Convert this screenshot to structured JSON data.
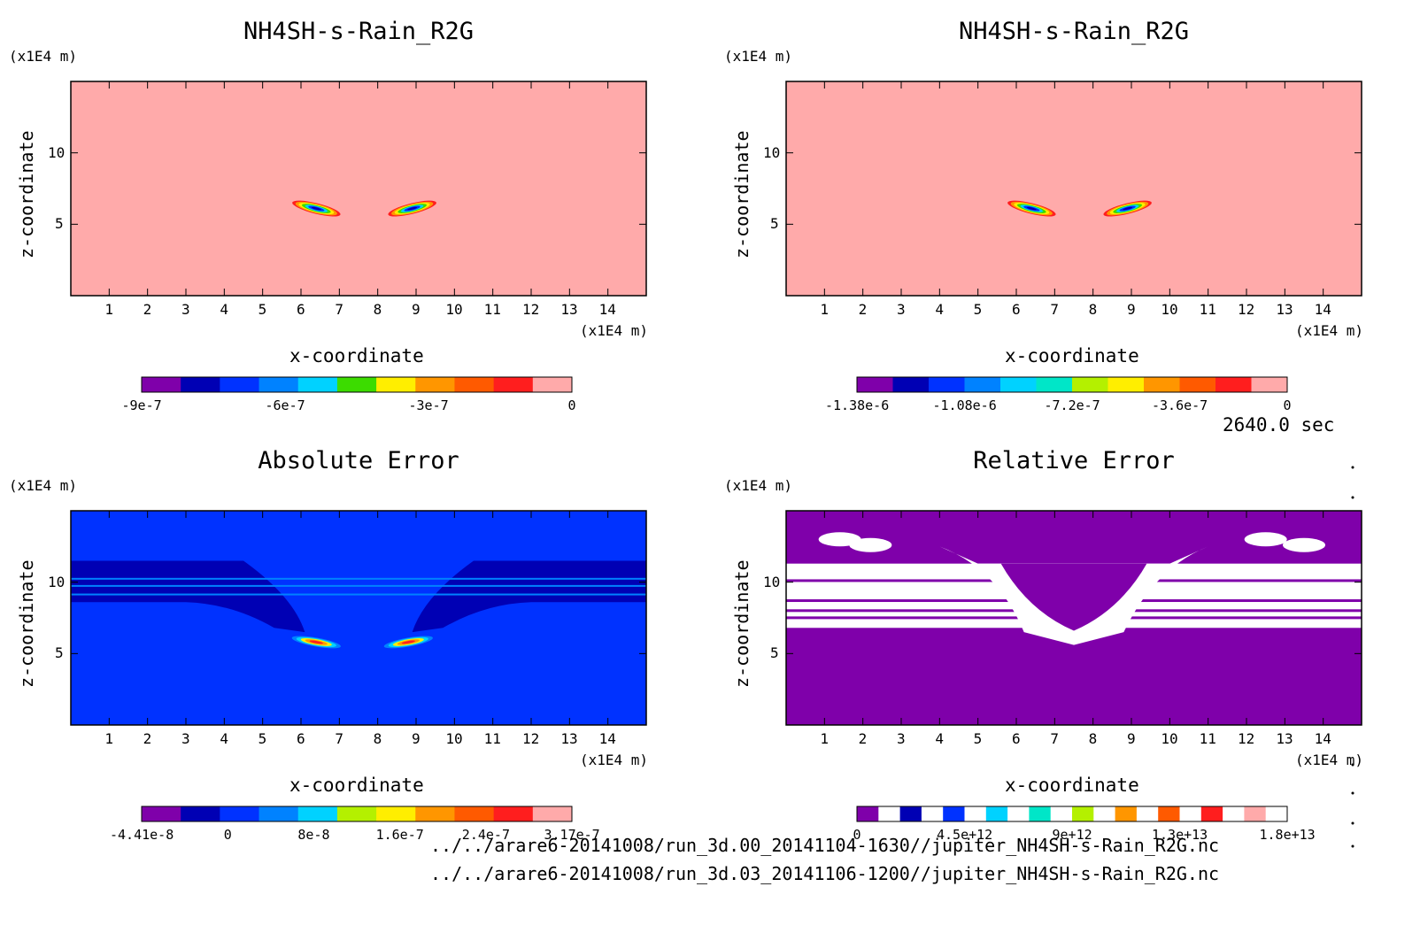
{
  "time_label": "2640.0 sec",
  "footer": {
    "path1": "../../arare6-20141008/run_3d.00_20141104-1630//jupiter_NH4SH-s-Rain_R2G.nc",
    "path2": "../../arare6-20141008/run_3d.03_20141106-1200//jupiter_NH4SH-s-Rain_R2G.nc"
  },
  "colors": {
    "purple": "#7f00aa",
    "darkblue": "#0000b4",
    "blue": "#0032ff",
    "midblue": "#0082ff",
    "cyan": "#00d2ff",
    "teal": "#00e6c8",
    "green": "#3cdc00",
    "lime": "#b4f000",
    "yellow": "#ffee00",
    "orange": "#ff9600",
    "darkorange": "#ff5a00",
    "red": "#ff1e1e",
    "pink": "#ffaaaa",
    "white": "#ffffff"
  },
  "chart_data": [
    {
      "type": "heatmap",
      "title": "NH4SH-s-Rain_R2G",
      "xlabel": "x-coordinate",
      "ylabel": "z-coordinate",
      "x_unit": "(x1E4 m)",
      "z_unit": "(x1E4 m)",
      "xlim": [
        0,
        15
      ],
      "ylim": [
        0,
        15
      ],
      "x_ticks": [
        "1",
        "2",
        "3",
        "4",
        "5",
        "6",
        "7",
        "8",
        "9",
        "10",
        "11",
        "12",
        "13",
        "14"
      ],
      "y_ticks": [
        "5",
        "10"
      ],
      "background": "pink",
      "colorbar": {
        "levels": [
          "purple",
          "darkblue",
          "blue",
          "midblue",
          "cyan",
          "green",
          "yellow",
          "orange",
          "darkorange",
          "red",
          "pink"
        ],
        "labels": [
          "-9e-7",
          "-6e-7",
          "-3e-7",
          "0"
        ]
      }
    },
    {
      "type": "heatmap",
      "title": "NH4SH-s-Rain_R2G",
      "xlabel": "x-coordinate",
      "ylabel": "z-coordinate",
      "x_unit": "(x1E4 m)",
      "z_unit": "(x1E4 m)",
      "xlim": [
        0,
        15
      ],
      "ylim": [
        0,
        15
      ],
      "x_ticks": [
        "1",
        "2",
        "3",
        "4",
        "5",
        "6",
        "7",
        "8",
        "9",
        "10",
        "11",
        "12",
        "13",
        "14"
      ],
      "y_ticks": [
        "5",
        "10"
      ],
      "background": "pink",
      "colorbar": {
        "levels": [
          "purple",
          "darkblue",
          "blue",
          "midblue",
          "cyan",
          "teal",
          "lime",
          "yellow",
          "orange",
          "darkorange",
          "red",
          "pink"
        ],
        "labels": [
          "-1.38e-6",
          "-1.08e-6",
          "-7.2e-7",
          "-3.6e-7",
          "0"
        ]
      }
    },
    {
      "type": "heatmap",
      "title": "Absolute Error",
      "xlabel": "x-coordinate",
      "ylabel": "z-coordinate",
      "x_unit": "(x1E4 m)",
      "z_unit": "(x1E4 m)",
      "xlim": [
        0,
        15
      ],
      "ylim": [
        0,
        15
      ],
      "x_ticks": [
        "1",
        "2",
        "3",
        "4",
        "5",
        "6",
        "7",
        "8",
        "9",
        "10",
        "11",
        "12",
        "13",
        "14"
      ],
      "y_ticks": [
        "5",
        "10"
      ],
      "background": "blue",
      "colorbar": {
        "levels": [
          "purple",
          "darkblue",
          "blue",
          "midblue",
          "cyan",
          "lime",
          "yellow",
          "orange",
          "darkorange",
          "red",
          "pink"
        ],
        "labels": [
          "-4.41e-8",
          "0",
          "8e-8",
          "1.6e-7",
          "2.4e-7",
          "3.17e-7"
        ]
      }
    },
    {
      "type": "heatmap",
      "title": "Relative Error",
      "xlabel": "x-coordinate",
      "ylabel": "z-coordinate",
      "x_unit": "(x1E4 m)",
      "z_unit": "(x1E4 m)",
      "xlim": [
        0,
        15
      ],
      "ylim": [
        0,
        15
      ],
      "x_ticks": [
        "1",
        "2",
        "3",
        "4",
        "5",
        "6",
        "7",
        "8",
        "9",
        "10",
        "11",
        "12",
        "13",
        "14"
      ],
      "y_ticks": [
        "5",
        "10"
      ],
      "background": "purple",
      "colorbar": {
        "levels": [
          "purple",
          "white",
          "darkblue",
          "white",
          "blue",
          "white",
          "cyan",
          "white",
          "teal",
          "white",
          "lime",
          "white",
          "orange",
          "white",
          "darkorange",
          "white",
          "red",
          "white",
          "pink",
          "white"
        ],
        "labels": [
          "0",
          "4.5e+12",
          "9e+12",
          "1.3e+13",
          "1.8e+13"
        ]
      }
    }
  ]
}
